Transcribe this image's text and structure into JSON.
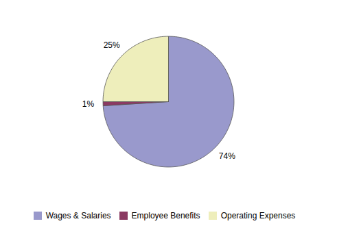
{
  "chart_data": {
    "type": "pie",
    "categories": [
      "Wages & Salaries",
      "Employee Benefits",
      "Operating Expenses"
    ],
    "values": [
      74,
      1,
      25
    ],
    "value_labels": [
      "74%",
      "1%",
      "25%"
    ],
    "colors": [
      "#9999cc",
      "#8b3a62",
      "#eeeebb"
    ],
    "data_labels": true,
    "legend": "bottom"
  }
}
